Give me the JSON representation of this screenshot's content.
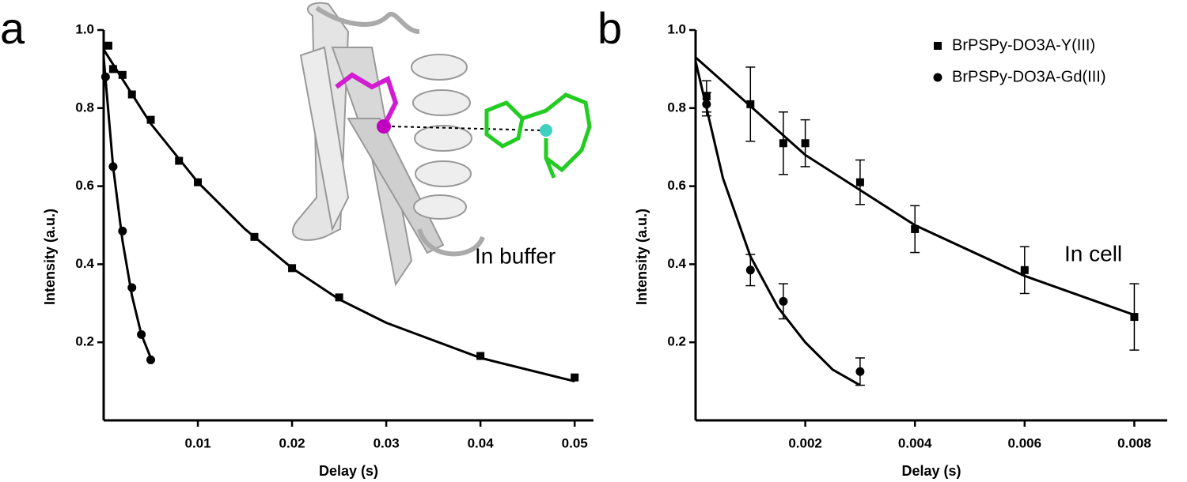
{
  "chart_data": [
    {
      "type": "scatter",
      "panel_label": "a",
      "x_label": "Delay (s)",
      "y_label": "Intensity (a.u.)",
      "annotation": "In buffer",
      "xlim": [
        0,
        0.052
      ],
      "ylim": [
        0,
        1.0
      ],
      "xticks": [
        0.01,
        0.02,
        0.03,
        0.04,
        0.05
      ],
      "yticks": [
        0.2,
        0.4,
        0.6,
        0.8,
        {
          "value": 1.0,
          "label": "1.0"
        }
      ],
      "series": [
        {
          "color": "#000000",
          "marker": "square",
          "x": [
            0.0005,
            0.001,
            0.002,
            0.003,
            0.005,
            0.008,
            0.01,
            0.016,
            0.02,
            0.025,
            0.04,
            0.05
          ],
          "values": [
            0.96,
            0.9,
            0.885,
            0.835,
            0.77,
            0.665,
            0.61,
            0.47,
            0.39,
            0.315,
            0.165,
            0.11
          ],
          "fit": {
            "x": [
              0,
              0.005,
              0.01,
              0.015,
              0.02,
              0.025,
              0.03,
              0.04,
              0.05
            ],
            "values": [
              0.95,
              0.76,
              0.61,
              0.49,
              0.39,
              0.31,
              0.25,
              0.16,
              0.1
            ]
          }
        },
        {
          "color": "#000000",
          "marker": "circle",
          "x": [
            0.0002,
            0.001,
            0.002,
            0.003,
            0.004,
            0.005
          ],
          "values": [
            0.88,
            0.65,
            0.485,
            0.34,
            0.22,
            0.155
          ],
          "fit": {
            "x": [
              0,
              0.001,
              0.002,
              0.003,
              0.004,
              0.005
            ],
            "values": [
              0.93,
              0.65,
              0.46,
              0.32,
              0.22,
              0.16
            ]
          }
        }
      ]
    },
    {
      "type": "scatter",
      "panel_label": "b",
      "x_label": "Delay (s)",
      "y_label": "Intensity (a.u.)",
      "annotation": "In cell",
      "xlim": [
        0,
        0.0086
      ],
      "ylim": [
        0,
        1.0
      ],
      "xticks": [
        0.002,
        0.004,
        0.006,
        0.008
      ],
      "yticks": [
        0.2,
        0.4,
        0.6,
        0.8,
        {
          "value": 1.0,
          "label": "1.0"
        }
      ],
      "legend": "upper right",
      "series": [
        {
          "name": "BrPSPy-DO3A-Y(III)",
          "color": "#000000",
          "marker": "square",
          "x": [
            0.0002,
            0.001,
            0.0016,
            0.002,
            0.003,
            0.004,
            0.006,
            0.008
          ],
          "values": [
            0.83,
            0.81,
            0.71,
            0.71,
            0.61,
            0.49,
            0.385,
            0.265
          ],
          "errors": [
            0.04,
            0.095,
            0.08,
            0.06,
            0.057,
            0.06,
            0.06,
            0.085
          ],
          "fit": {
            "x": [
              0,
              0.002,
              0.004,
              0.006,
              0.008
            ],
            "values": [
              0.93,
              0.68,
              0.5,
              0.37,
              0.27
            ]
          }
        },
        {
          "name": "BrPSPy-DO3A-Gd(III)",
          "color": "#000000",
          "marker": "circle",
          "x": [
            0.0002,
            0.001,
            0.0016,
            0.003
          ],
          "values": [
            0.81,
            0.385,
            0.305,
            0.125
          ],
          "errors": [
            0.03,
            0.04,
            0.045,
            0.035
          ],
          "fit": {
            "x": [
              0,
              0.0005,
              0.001,
              0.0015,
              0.002,
              0.0025,
              0.003
            ],
            "values": [
              0.92,
              0.62,
              0.42,
              0.29,
              0.2,
              0.13,
              0.09
            ]
          }
        }
      ]
    }
  ]
}
